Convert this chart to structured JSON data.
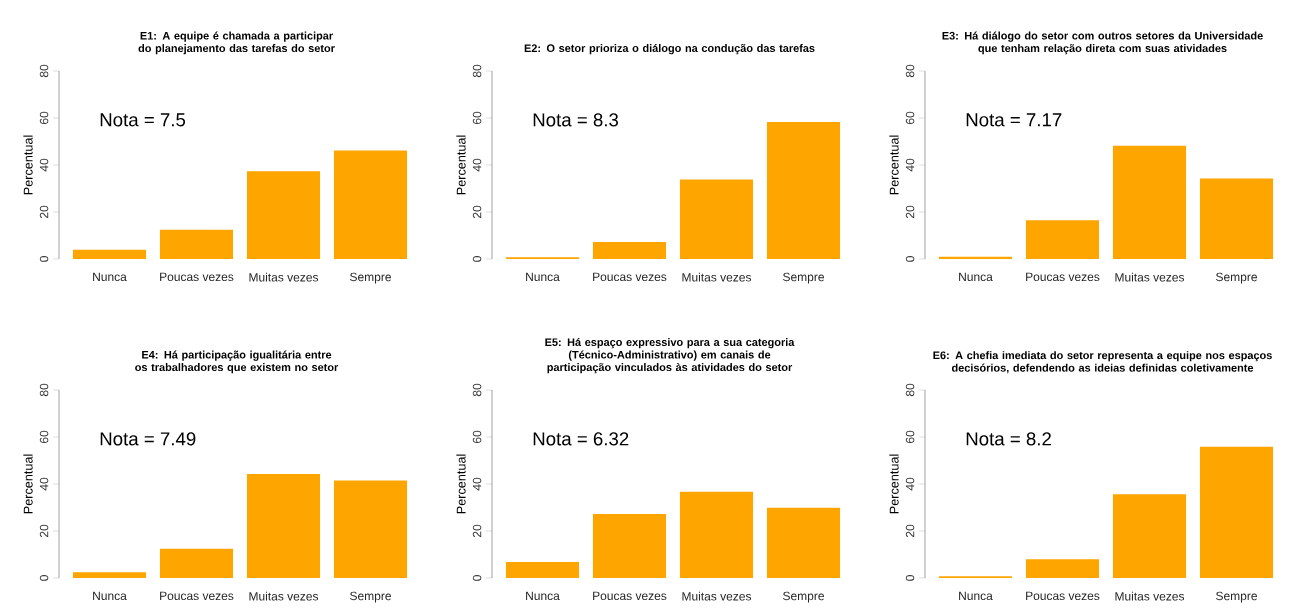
{
  "chart_data": [
    {
      "type": "bar",
      "title": "E1: A equipe é chamada a participar do planejamento das tarefas do setor",
      "ylabel": "Percentual",
      "categories": [
        "Nunca",
        "Poucas vezes",
        "Muitas vezes",
        "Sempre"
      ],
      "values": [
        3.9,
        12.4,
        37.3,
        46.2
      ],
      "color": "#ffa500",
      "ylim": [
        0,
        80
      ],
      "yticks": [
        0,
        20,
        40,
        60,
        80
      ],
      "annotations": [
        "Nota = 7.5"
      ]
    },
    {
      "type": "bar",
      "title": "E2: O setor prioriza o diálogo na condução das tarefas",
      "ylabel": "Percentual",
      "categories": [
        "Nunca",
        "Poucas vezes",
        "Muitas vezes",
        "Sempre"
      ],
      "values": [
        0.7,
        7.2,
        33.8,
        58.3
      ],
      "color": "#ffa500",
      "ylim": [
        0,
        80
      ],
      "yticks": [
        0,
        20,
        40,
        60,
        80
      ],
      "annotations": [
        "Nota = 8.3"
      ]
    },
    {
      "type": "bar",
      "title": "E3: Há diálogo do setor com outros setores da Universidade que tenham relação direta com suas atividades",
      "ylabel": "Percentual",
      "categories": [
        "Nunca",
        "Poucas vezes",
        "Muitas vezes",
        "Sempre"
      ],
      "values": [
        1.0,
        16.5,
        48.2,
        34.2
      ],
      "color": "#ffa500",
      "ylim": [
        0,
        80
      ],
      "yticks": [
        0,
        20,
        40,
        60,
        80
      ],
      "annotations": [
        "Nota = 7.17"
      ]
    },
    {
      "type": "bar",
      "title": "E4: Há participação igualitária entre os trabalhadores que existem no setor",
      "ylabel": "Percentual",
      "categories": [
        "Nunca",
        "Poucas vezes",
        "Muitas vezes",
        "Sempre"
      ],
      "values": [
        2.4,
        12.4,
        44.3,
        41.5
      ],
      "color": "#ffa500",
      "ylim": [
        0,
        80
      ],
      "yticks": [
        0,
        20,
        40,
        60,
        80
      ],
      "annotations": [
        "Nota = 7.49"
      ]
    },
    {
      "type": "bar",
      "title": "E5: Há espaço expressivo para a sua categoria (Técnico-Administrativo) em canais de participação vinculados às atividades do setor",
      "ylabel": "Percentual",
      "categories": [
        "Nunca",
        "Poucas vezes",
        "Muitas vezes",
        "Sempre"
      ],
      "values": [
        6.8,
        27.2,
        36.7,
        29.9
      ],
      "color": "#ffa500",
      "ylim": [
        0,
        80
      ],
      "yticks": [
        0,
        20,
        40,
        60,
        80
      ],
      "annotations": [
        "Nota = 6.32"
      ]
    },
    {
      "type": "bar",
      "title": "E6: A chefia imediata do setor representa a equipe nos espaços decisórios, defendendo as ideias definidas coletivamente",
      "ylabel": "Percentual",
      "categories": [
        "Nunca",
        "Poucas vezes",
        "Muitas vezes",
        "Sempre"
      ],
      "values": [
        0.7,
        8.0,
        35.6,
        55.9
      ],
      "color": "#ffa500",
      "ylim": [
        0,
        80
      ],
      "yticks": [
        0,
        20,
        40,
        60,
        80
      ],
      "annotations": [
        "Nota = 8.2"
      ]
    }
  ]
}
